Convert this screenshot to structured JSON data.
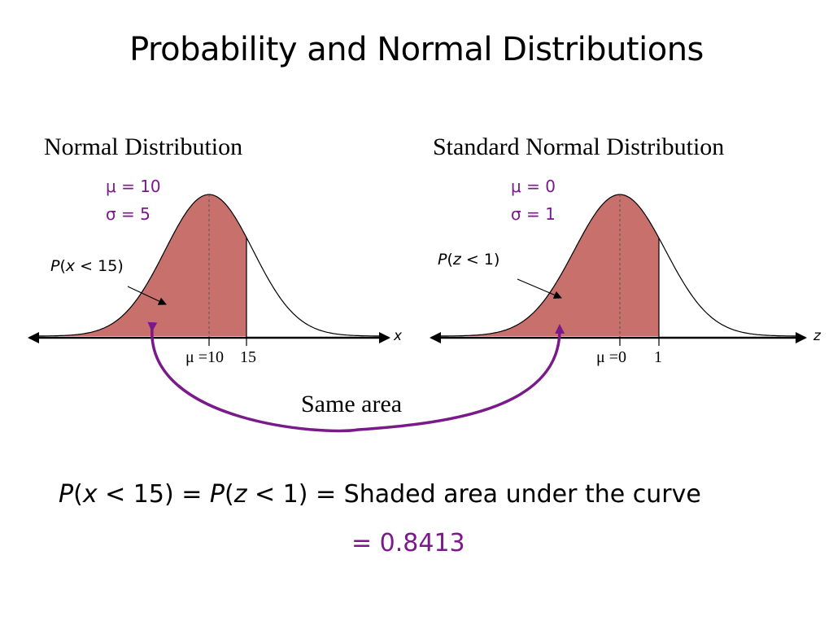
{
  "slide": {
    "title": "Probability and Normal Distributions"
  },
  "left_panel": {
    "title": "Normal Distribution",
    "mu_label": "μ = 10",
    "sigma_label": "σ = 5",
    "prob_prefix": "P",
    "prob_var": "x",
    "prob_suffix": " < 15)",
    "axis_var": "x",
    "tick_mean": "μ =10",
    "tick_bound": "15"
  },
  "right_panel": {
    "title": "Standard Normal Distribution",
    "mu_label": "μ = 0",
    "sigma_label": "σ = 1",
    "prob_prefix": "P",
    "prob_var": "z",
    "prob_suffix": " < 1)",
    "axis_var": "z",
    "tick_mean": "μ =0",
    "tick_bound": "1"
  },
  "connector": {
    "label": "Same area"
  },
  "equation": {
    "p1": "P",
    "v1": "x",
    "mid1": " < 15) = ",
    "p2": "P",
    "v2": "z",
    "mid2": " < 1) = Shaded area under the curve",
    "result": "= 0.8413"
  },
  "colors": {
    "shade_fill": "#c8706c",
    "accent_purple": "#7a1a8a"
  }
}
